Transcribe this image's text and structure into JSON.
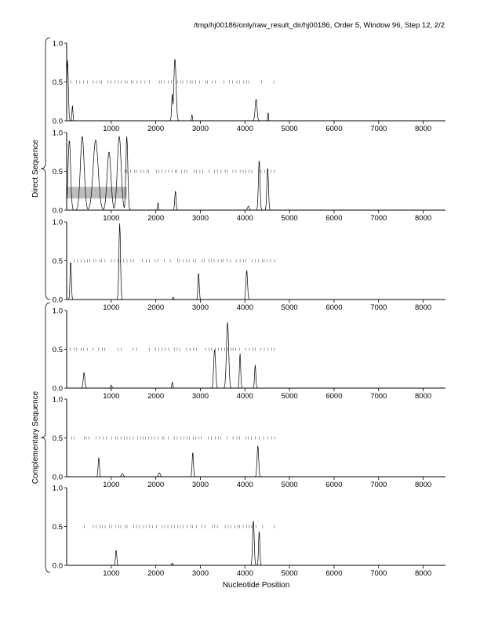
{
  "header": {
    "title": "/tmp/hj00186/only/raw_result_dir/hj00186, Order 5, Window 96, Step 12, 2/2"
  },
  "axes": {
    "xlabel": "Nucleotide Position",
    "group_labels": [
      "Direct Sequence",
      "Complementary Sequence"
    ],
    "x_ticks": [
      1000,
      2000,
      3000,
      4000,
      5000,
      6000,
      7000,
      8000
    ],
    "y_ticks": [
      0.0,
      0.5,
      1.0
    ],
    "y_tick_labels": [
      "0.0",
      "0.5",
      "1.0"
    ]
  },
  "chart_data": [
    {
      "type": "line",
      "group": "Direct Sequence",
      "xlim": [
        0,
        8500
      ],
      "ylim": [
        0,
        1
      ],
      "peaks": [
        [
          20,
          0.78,
          25
        ],
        [
          130,
          0.2,
          15
        ],
        [
          2430,
          0.8,
          35
        ],
        [
          2370,
          0.35,
          20
        ],
        [
          2810,
          0.08,
          15
        ],
        [
          4250,
          0.28,
          30
        ],
        [
          4520,
          0.12,
          10
        ]
      ],
      "marks": {
        "y": 0.5,
        "start": 100,
        "end": 4700,
        "step": 70
      }
    },
    {
      "type": "line",
      "group": "Direct Sequence",
      "xlim": [
        0,
        8500
      ],
      "ylim": [
        0,
        1
      ],
      "shaded_region": {
        "x": [
          0,
          1350
        ],
        "y": [
          0.15,
          0.3
        ]
      },
      "peaks": [
        [
          60,
          0.9,
          40
        ],
        [
          350,
          0.95,
          60
        ],
        [
          650,
          0.9,
          80
        ],
        [
          950,
          0.75,
          60
        ],
        [
          1180,
          0.95,
          60
        ],
        [
          1350,
          0.95,
          30
        ],
        [
          2050,
          0.1,
          15
        ],
        [
          2440,
          0.25,
          20
        ],
        [
          4080,
          0.05,
          30
        ],
        [
          4320,
          0.65,
          25
        ],
        [
          4510,
          0.55,
          25
        ]
      ],
      "marks": {
        "y": 0.5,
        "start": 1300,
        "end": 4700,
        "step": 70
      }
    },
    {
      "type": "line",
      "group": "Direct Sequence",
      "xlim": [
        0,
        8500
      ],
      "ylim": [
        0,
        1
      ],
      "peaks": [
        [
          90,
          0.5,
          20
        ],
        [
          1190,
          0.98,
          25
        ],
        [
          2390,
          0.03,
          20
        ],
        [
          2960,
          0.35,
          20
        ],
        [
          4040,
          0.38,
          25
        ]
      ],
      "marks": {
        "y": 0.5,
        "start": 100,
        "end": 4700,
        "step": 70
      }
    },
    {
      "type": "line",
      "group": "Complementary Sequence",
      "xlim": [
        0,
        8500
      ],
      "ylim": [
        0,
        1
      ],
      "peaks": [
        [
          390,
          0.2,
          25
        ],
        [
          1000,
          0.04,
          20
        ],
        [
          2370,
          0.08,
          15
        ],
        [
          3320,
          0.5,
          30
        ],
        [
          3610,
          0.85,
          35
        ],
        [
          3890,
          0.45,
          20
        ],
        [
          4230,
          0.3,
          20
        ]
      ],
      "marks": {
        "y": 0.5,
        "start": 100,
        "end": 4700,
        "step": 70
      }
    },
    {
      "type": "line",
      "group": "Complementary Sequence",
      "xlim": [
        0,
        8500
      ],
      "ylim": [
        0,
        1
      ],
      "peaks": [
        [
          720,
          0.25,
          20
        ],
        [
          1250,
          0.04,
          30
        ],
        [
          2080,
          0.05,
          30
        ],
        [
          2830,
          0.32,
          20
        ],
        [
          4290,
          0.4,
          25
        ]
      ],
      "marks": {
        "y": 0.5,
        "start": 100,
        "end": 4700,
        "step": 70
      }
    },
    {
      "type": "line",
      "group": "Complementary Sequence",
      "xlim": [
        0,
        8500
      ],
      "ylim": [
        0,
        1
      ],
      "peaks": [
        [
          1110,
          0.2,
          20
        ],
        [
          2370,
          0.03,
          20
        ],
        [
          4190,
          0.58,
          25
        ],
        [
          4320,
          0.45,
          20
        ]
      ],
      "marks": {
        "y": 0.5,
        "start": 250,
        "end": 4700,
        "step": 70
      }
    }
  ],
  "colors": {
    "line": "#000000",
    "shade": "#bdbdbd",
    "axis": "#000000"
  }
}
